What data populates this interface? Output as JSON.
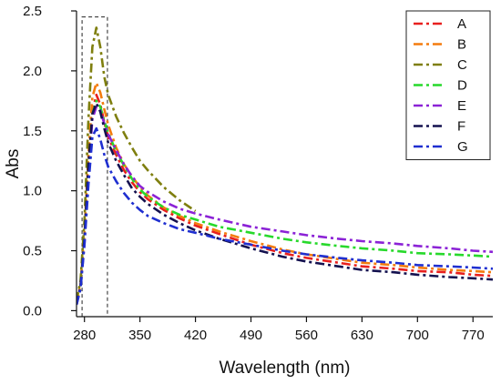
{
  "chart_data": {
    "type": "line",
    "title": "",
    "xlabel": "Wavelength (nm)",
    "ylabel": "Abs",
    "xlim": [
      270,
      795
    ],
    "ylim": [
      -0.05,
      2.5
    ],
    "xticks": [
      280,
      350,
      420,
      490,
      560,
      630,
      700,
      770
    ],
    "xtick_labels": [
      "280",
      "350",
      "420",
      "490",
      "560",
      "630",
      "700",
      "770"
    ],
    "yticks": [
      0.0,
      0.5,
      1.0,
      1.5,
      2.0,
      2.5
    ],
    "ytick_labels": [
      "0.0",
      "0.5",
      "1.0",
      "1.5",
      "2.0",
      "2.5"
    ],
    "grid": false,
    "line_style": "dash-dot",
    "legend_position": "top-right",
    "highlight_box": {
      "x_range": [
        277,
        309
      ],
      "y_range": [
        -0.05,
        2.45
      ],
      "style": "dashed"
    },
    "series": [
      {
        "name": "A",
        "color": "#e8201e",
        "x": [
          270,
          275,
          280,
          285,
          290,
          295,
          300,
          305,
          310,
          320,
          330,
          340,
          350,
          360,
          380,
          400,
          420,
          450,
          490,
          530,
          560,
          600,
          630,
          670,
          700,
          740,
          770,
          795
        ],
        "y": [
          0.05,
          0.2,
          0.6,
          1.2,
          1.66,
          1.8,
          1.72,
          1.57,
          1.45,
          1.3,
          1.17,
          1.07,
          0.99,
          0.93,
          0.84,
          0.77,
          0.71,
          0.64,
          0.55,
          0.48,
          0.44,
          0.4,
          0.37,
          0.35,
          0.33,
          0.32,
          0.3,
          0.29
        ]
      },
      {
        "name": "B",
        "color": "#f47c0e",
        "x": [
          270,
          275,
          280,
          285,
          290,
          295,
          300,
          305,
          310,
          320,
          330,
          340,
          350,
          360,
          380,
          400,
          420,
          450,
          490,
          530,
          560,
          600,
          630,
          670,
          700,
          740,
          770,
          795
        ],
        "y": [
          0.06,
          0.22,
          0.65,
          1.3,
          1.78,
          1.9,
          1.82,
          1.68,
          1.55,
          1.36,
          1.22,
          1.12,
          1.03,
          0.96,
          0.86,
          0.79,
          0.73,
          0.66,
          0.58,
          0.51,
          0.47,
          0.43,
          0.4,
          0.38,
          0.36,
          0.34,
          0.33,
          0.32
        ]
      },
      {
        "name": "C",
        "color": "#7f7f0f",
        "x": [
          270,
          275,
          280,
          285,
          290,
          295,
          300,
          305,
          310,
          320,
          330,
          340,
          350,
          360,
          380,
          400,
          420
        ],
        "y": [
          0.08,
          0.25,
          0.75,
          1.6,
          2.2,
          2.36,
          2.2,
          1.95,
          1.8,
          1.62,
          1.48,
          1.36,
          1.25,
          1.17,
          1.03,
          0.92,
          0.83
        ]
      },
      {
        "name": "D",
        "color": "#27d92b",
        "x": [
          270,
          275,
          280,
          285,
          290,
          295,
          300,
          305,
          310,
          320,
          330,
          340,
          350,
          360,
          380,
          400,
          420,
          450,
          490,
          530,
          560,
          600,
          630,
          670,
          700,
          740,
          770,
          795
        ],
        "y": [
          0.05,
          0.2,
          0.6,
          1.2,
          1.64,
          1.75,
          1.7,
          1.58,
          1.48,
          1.33,
          1.21,
          1.1,
          1.01,
          0.95,
          0.86,
          0.8,
          0.76,
          0.7,
          0.65,
          0.6,
          0.57,
          0.54,
          0.52,
          0.5,
          0.48,
          0.47,
          0.46,
          0.45
        ]
      },
      {
        "name": "E",
        "color": "#8b22d6",
        "x": [
          270,
          275,
          280,
          285,
          290,
          295,
          300,
          305,
          310,
          320,
          330,
          340,
          350,
          360,
          380,
          400,
          420,
          450,
          490,
          530,
          560,
          600,
          630,
          670,
          700,
          740,
          770,
          795
        ],
        "y": [
          0.05,
          0.2,
          0.55,
          1.15,
          1.6,
          1.7,
          1.67,
          1.56,
          1.47,
          1.34,
          1.22,
          1.12,
          1.04,
          0.99,
          0.91,
          0.85,
          0.81,
          0.76,
          0.7,
          0.66,
          0.63,
          0.6,
          0.58,
          0.56,
          0.54,
          0.52,
          0.5,
          0.49
        ]
      },
      {
        "name": "F",
        "color": "#14114f",
        "x": [
          270,
          275,
          280,
          285,
          290,
          295,
          300,
          305,
          310,
          320,
          330,
          340,
          350,
          360,
          380,
          400,
          420,
          450,
          490,
          530,
          560,
          600,
          630,
          670,
          700,
          740,
          770,
          795
        ],
        "y": [
          0.05,
          0.2,
          0.6,
          1.22,
          1.64,
          1.73,
          1.66,
          1.52,
          1.4,
          1.25,
          1.13,
          1.02,
          0.95,
          0.89,
          0.8,
          0.73,
          0.67,
          0.6,
          0.52,
          0.45,
          0.41,
          0.37,
          0.34,
          0.32,
          0.3,
          0.28,
          0.27,
          0.26
        ]
      },
      {
        "name": "G",
        "color": "#1f2fd0",
        "x": [
          270,
          275,
          280,
          285,
          290,
          295,
          300,
          305,
          310,
          320,
          330,
          340,
          350,
          360,
          380,
          400,
          420,
          450,
          490,
          530,
          560,
          600,
          630,
          670,
          700,
          740,
          770,
          795
        ],
        "y": [
          0.05,
          0.18,
          0.55,
          1.05,
          1.45,
          1.52,
          1.43,
          1.3,
          1.2,
          1.08,
          0.98,
          0.9,
          0.84,
          0.79,
          0.73,
          0.68,
          0.65,
          0.6,
          0.55,
          0.5,
          0.47,
          0.44,
          0.42,
          0.4,
          0.38,
          0.37,
          0.36,
          0.35
        ]
      }
    ]
  }
}
